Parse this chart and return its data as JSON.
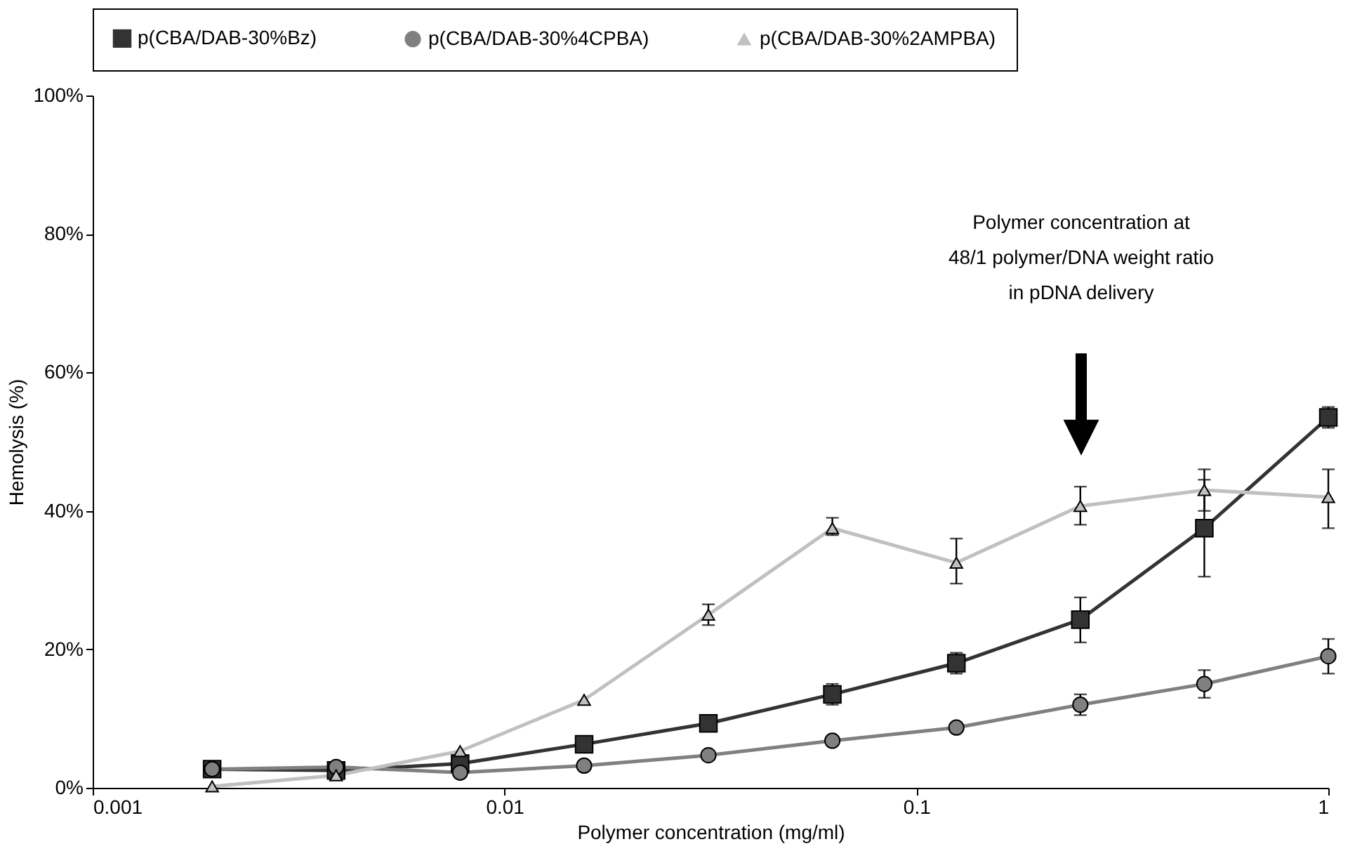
{
  "chart_data": {
    "type": "line",
    "xlabel": "Polymer concentration (mg/ml)",
    "ylabel": "Hemolysis (%)",
    "x": [
      0.00195,
      0.0039,
      0.0078,
      0.0156,
      0.03125,
      0.0625,
      0.125,
      0.25,
      0.5,
      1
    ],
    "series": [
      {
        "name": "p(CBA/DAB-30%Bz)",
        "color": "#333333",
        "marker": "square",
        "values": [
          2.7,
          2.5,
          3.5,
          6.3,
          9.3,
          13.5,
          18,
          24.3,
          37.5,
          53.5
        ],
        "errors": [
          null,
          null,
          null,
          null,
          null,
          [
            12,
            15
          ],
          [
            16.5,
            19.5
          ],
          [
            21,
            27.5
          ],
          [
            30.5,
            44.5
          ],
          [
            52,
            55
          ]
        ]
      },
      {
        "name": "p(CBA/DAB-30%4CPBA)",
        "color": "#808080",
        "marker": "circle",
        "values": [
          2.7,
          3.0,
          2.2,
          3.2,
          4.7,
          6.8,
          8.7,
          12,
          15,
          19
        ],
        "errors": [
          null,
          null,
          null,
          null,
          null,
          null,
          null,
          [
            10.5,
            13.5
          ],
          [
            13,
            17
          ],
          [
            16.5,
            21.5
          ]
        ]
      },
      {
        "name": "p(CBA/DAB-30%2AMPBA)",
        "color": "#c0c0c0",
        "marker": "triangle",
        "values": [
          0.2,
          1.8,
          5.3,
          12.7,
          25,
          37.5,
          32.5,
          40.7,
          43,
          42
        ],
        "errors": [
          null,
          null,
          null,
          null,
          [
            23.5,
            26.5
          ],
          [
            36.5,
            39
          ],
          [
            29.5,
            36
          ],
          [
            38,
            43.5
          ],
          [
            40,
            46
          ],
          [
            37.5,
            46
          ]
        ]
      }
    ],
    "log": "x",
    "xlim": [
      0.001,
      1
    ],
    "xticks": [
      0.001,
      0.01,
      0.1,
      1
    ],
    "ylim": [
      0,
      100
    ],
    "yticks": [
      {
        "value": 0,
        "label": "0%"
      },
      {
        "value": 20,
        "label": "20%"
      },
      {
        "value": 40,
        "label": "40%"
      },
      {
        "value": 60,
        "label": "60%"
      },
      {
        "value": 80,
        "label": "80%"
      },
      {
        "value": 100,
        "label": "100%"
      }
    ],
    "grid": false,
    "legend": "top",
    "line_style": "solid",
    "annotations": [
      "Polymer concentration at\n48/1 polymer/DNA weight ratio\nin pDNA delivery"
    ]
  }
}
